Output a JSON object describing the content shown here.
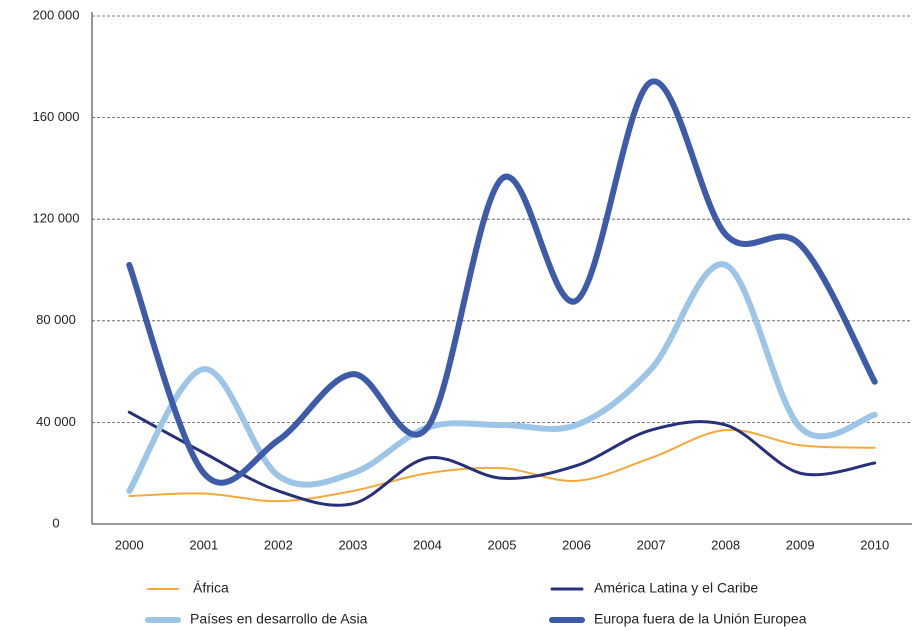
{
  "chart_data": {
    "type": "line",
    "smooth": true,
    "grid": true,
    "categories": [
      "2000",
      "2001",
      "2002",
      "2003",
      "2004",
      "2005",
      "2006",
      "2007",
      "2008",
      "2009",
      "2010"
    ],
    "ylim": [
      0,
      200000
    ],
    "yticks": [
      0,
      {
        "value": 40000,
        "label": "40 000"
      },
      {
        "value": 80000,
        "label": "80 000"
      },
      {
        "value": 120000,
        "label": "120 000"
      },
      {
        "value": 160000,
        "label": "160 000"
      },
      {
        "value": 200000,
        "label": "200 000"
      }
    ],
    "legend": "bottom",
    "series": [
      {
        "name": "África",
        "color": "#f5a93a",
        "values": [
          11000,
          12000,
          9000,
          13000,
          20000,
          22000,
          17000,
          26000,
          37000,
          31000,
          30000
        ]
      },
      {
        "name": "América Latina y el Caribe",
        "color": "#27307a",
        "values": [
          44000,
          28000,
          13000,
          8000,
          26000,
          18000,
          23000,
          37000,
          39000,
          20000,
          24000
        ]
      },
      {
        "name": "Países en desarrollo de Asia",
        "color": "#9cc5e8",
        "values": [
          13000,
          61000,
          19000,
          20000,
          38000,
          39000,
          39000,
          61000,
          102000,
          38000,
          43000
        ]
      },
      {
        "name": "Europa fuera de la Unión Europea",
        "color": "#3d5ba8",
        "values": [
          102000,
          20000,
          33000,
          59000,
          38000,
          136000,
          88000,
          174000,
          114000,
          110000,
          56000
        ]
      }
    ]
  }
}
